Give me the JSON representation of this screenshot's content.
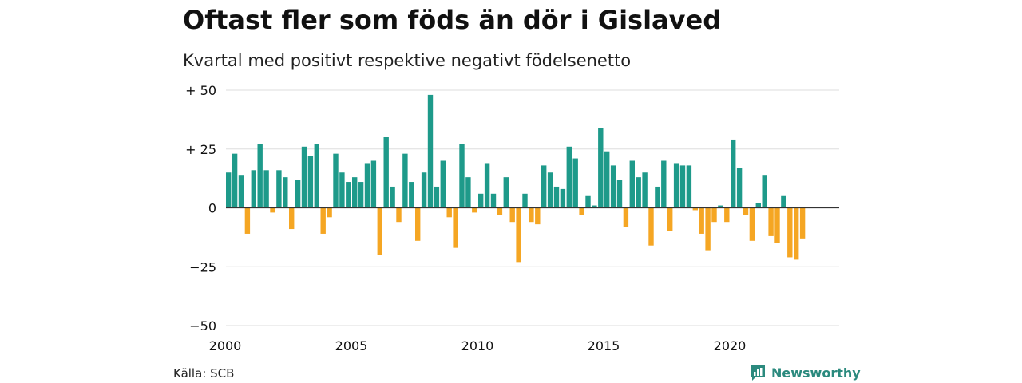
{
  "header": {
    "title": "Oftast fler som föds än dör i Gislaved",
    "subtitle": "Kvartal med positivt respektive negativt födelsenetto"
  },
  "footer": {
    "source": "Källa: SCB",
    "brand": "Newsworthy",
    "brand_icon": "bar-chart-logo-icon"
  },
  "colors": {
    "positive": "#1e9a8a",
    "negative": "#f5a623",
    "grid": "#dddddd",
    "zero_line": "#333333",
    "brand": "#2b8a7e"
  },
  "chart_data": {
    "type": "bar",
    "title": "Oftast fler som föds än dör i Gislaved",
    "subtitle": "Kvartal med positivt respektive negativt födelsenetto",
    "x_start": "2000 Q1",
    "x_ticks": [
      "2000",
      "2005",
      "2010",
      "2015",
      "2020"
    ],
    "y_ticks": [
      50,
      25,
      0,
      -25,
      -50
    ],
    "y_tick_labels": [
      "+ 50",
      "+ 25",
      "0",
      "−25",
      "−50"
    ],
    "ylim": [
      -50,
      50
    ],
    "grid": true,
    "values": [
      15,
      23,
      14,
      -11,
      16,
      27,
      16,
      -2,
      16,
      13,
      -9,
      12,
      26,
      22,
      27,
      -11,
      -4,
      23,
      15,
      11,
      13,
      11,
      19,
      20,
      -20,
      30,
      9,
      -6,
      23,
      11,
      -14,
      15,
      48,
      9,
      20,
      -4,
      -17,
      27,
      13,
      -2,
      6,
      19,
      6,
      -3,
      13,
      -6,
      -23,
      6,
      -6,
      -7,
      18,
      15,
      9,
      8,
      26,
      21,
      -3,
      5,
      1,
      34,
      24,
      18,
      12,
      -8,
      20,
      13,
      15,
      -16,
      9,
      20,
      -10,
      19,
      18,
      18,
      -1,
      -11,
      -18,
      -6,
      1,
      -6,
      29,
      17,
      -3,
      -14,
      2,
      14,
      -12,
      -15,
      5,
      -21,
      -22,
      -13
    ]
  }
}
